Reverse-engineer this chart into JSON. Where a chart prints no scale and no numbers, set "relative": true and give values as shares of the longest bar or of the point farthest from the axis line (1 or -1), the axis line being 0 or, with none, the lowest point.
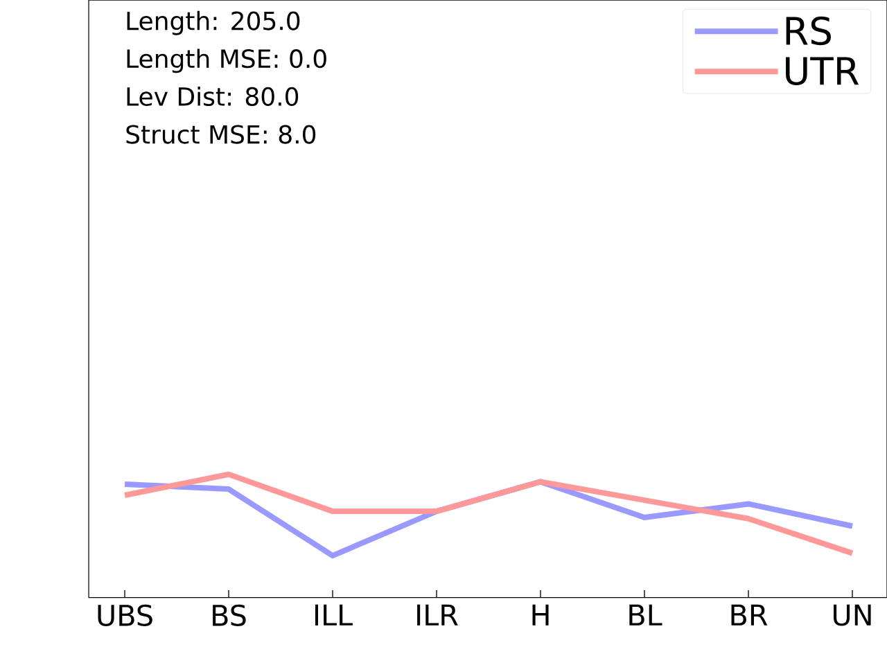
{
  "chart_data": {
    "type": "line",
    "relative": true,
    "categories": [
      "UBS",
      "BS",
      "ILL",
      "ILR",
      "H",
      "BL",
      "BR",
      "UN"
    ],
    "series": [
      {
        "name": "RS",
        "color": "#9999ff",
        "values": [
          0.92,
          0.88,
          0.34,
          0.7,
          0.94,
          0.65,
          0.76,
          0.58
        ]
      },
      {
        "name": "UTR",
        "color": "#ff9999",
        "values": [
          0.83,
          1,
          0.7,
          0.7,
          0.94,
          0.79,
          0.64,
          0.36
        ]
      }
    ],
    "annotations": [
      "Length: 205.0",
      "Length MSE: 0.0",
      "Lev Dist: 80.0",
      "Struct MSE: 8.0"
    ],
    "legend": "top right",
    "grid": false,
    "marker": "none",
    "line_style": "solid"
  }
}
